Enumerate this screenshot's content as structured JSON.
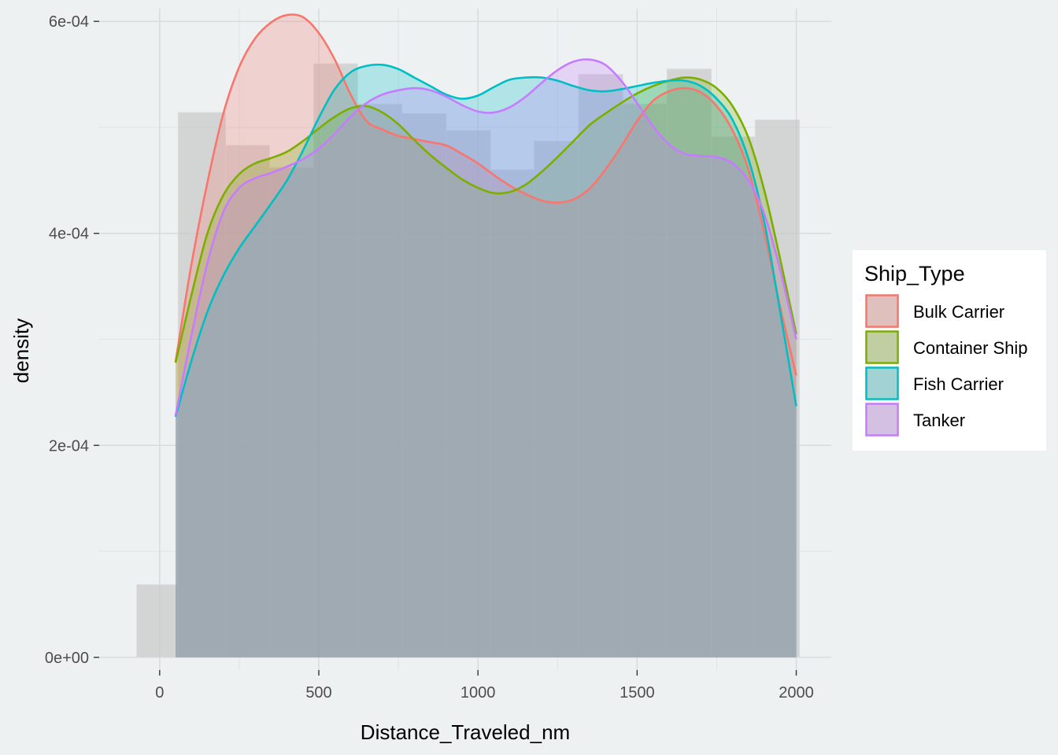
{
  "chart_data": {
    "type": "area",
    "xlabel": "Distance_Traveled_nm",
    "ylabel": "density",
    "xlim": [
      -190,
      2110
    ],
    "ylim": [
      -1.2e-05,
      0.000612
    ],
    "x_ticks": [
      0,
      500,
      1000,
      1500,
      2000
    ],
    "x_tick_labels": [
      "0",
      "500",
      "1000",
      "1500",
      "2000"
    ],
    "y_ticks": [
      0,
      0.0002,
      0.0004,
      0.0006
    ],
    "y_tick_labels": [
      "0e+00",
      "2e-04",
      "4e-04",
      "6e-04"
    ],
    "grid": true,
    "legend": {
      "title": "Ship_Type",
      "position": "right"
    },
    "histogram": {
      "fill": "#c7c7c7",
      "bin_width": 139.5,
      "bins": [
        {
          "x0": -72,
          "x1": 58,
          "density": 6.85e-05
        },
        {
          "x0": 58,
          "x1": 207,
          "density": 0.000514
        },
        {
          "x0": 207,
          "x1": 345,
          "density": 0.000483
        },
        {
          "x0": 345,
          "x1": 484,
          "density": 0.000462
        },
        {
          "x0": 484,
          "x1": 622,
          "density": 0.00056
        },
        {
          "x0": 622,
          "x1": 761,
          "density": 0.000522
        },
        {
          "x0": 761,
          "x1": 900,
          "density": 0.000513
        },
        {
          "x0": 900,
          "x1": 1039,
          "density": 0.000497
        },
        {
          "x0": 1039,
          "x1": 1177,
          "density": 0.00046
        },
        {
          "x0": 1177,
          "x1": 1316,
          "density": 0.000487
        },
        {
          "x0": 1316,
          "x1": 1455,
          "density": 0.00055
        },
        {
          "x0": 1455,
          "x1": 1594,
          "density": 0.000522
        },
        {
          "x0": 1594,
          "x1": 1733,
          "density": 0.000555
        },
        {
          "x0": 1733,
          "x1": 1871,
          "density": 0.000491
        },
        {
          "x0": 1871,
          "x1": 2010,
          "density": 0.000507
        }
      ]
    },
    "series": [
      {
        "name": "Bulk Carrier",
        "color": "#f8766d",
        "x": [
          50,
          100,
          150,
          200,
          250,
          300,
          350,
          400,
          450,
          500,
          550,
          600,
          650,
          700,
          750,
          800,
          850,
          900,
          950,
          1000,
          1050,
          1100,
          1150,
          1200,
          1250,
          1300,
          1350,
          1400,
          1450,
          1500,
          1550,
          1600,
          1650,
          1700,
          1750,
          1800,
          1850,
          1900,
          1950,
          2000
        ],
        "y": [
          0.000279,
          0.000371,
          0.000448,
          0.000513,
          0.000557,
          0.000584,
          0.000599,
          0.000606,
          0.000604,
          0.000589,
          0.000564,
          0.000531,
          0.000506,
          0.000498,
          0.000492,
          0.000489,
          0.000486,
          0.000483,
          0.000475,
          0.000466,
          0.000455,
          0.000445,
          0.000437,
          0.000431,
          0.000429,
          0.000432,
          0.000442,
          0.00046,
          0.000482,
          0.000506,
          0.000525,
          0.000534,
          0.000537,
          0.000533,
          0.00052,
          0.000497,
          0.00046,
          0.0004,
          0.00033,
          0.000266
        ]
      },
      {
        "name": "Container Ship",
        "color": "#7cae00",
        "x": [
          50,
          100,
          150,
          200,
          250,
          300,
          350,
          400,
          450,
          500,
          550,
          600,
          650,
          700,
          750,
          800,
          850,
          900,
          950,
          1000,
          1050,
          1100,
          1150,
          1200,
          1250,
          1300,
          1350,
          1400,
          1450,
          1500,
          1550,
          1600,
          1650,
          1700,
          1750,
          1800,
          1850,
          1900,
          1950,
          2000
        ],
        "y": [
          0.000278,
          0.000342,
          0.0004,
          0.000436,
          0.000456,
          0.000466,
          0.000471,
          0.000477,
          0.000487,
          0.000499,
          0.00051,
          0.000518,
          0.00052,
          0.000514,
          0.000503,
          0.000488,
          0.000474,
          0.000462,
          0.000451,
          0.000443,
          0.000438,
          0.000439,
          0.000446,
          0.000458,
          0.000472,
          0.000487,
          0.000502,
          0.000513,
          0.000523,
          0.000532,
          0.000539,
          0.000544,
          0.000547,
          0.000545,
          0.000537,
          0.00052,
          0.00049,
          0.00044,
          0.000375,
          0.000305
        ]
      },
      {
        "name": "Fish Carrier",
        "color": "#00bfc4",
        "x": [
          50,
          100,
          150,
          200,
          250,
          300,
          350,
          400,
          450,
          500,
          550,
          600,
          650,
          700,
          750,
          800,
          850,
          900,
          950,
          1000,
          1050,
          1100,
          1150,
          1200,
          1250,
          1300,
          1350,
          1400,
          1450,
          1500,
          1550,
          1600,
          1650,
          1700,
          1750,
          1800,
          1850,
          1900,
          1950,
          2000
        ],
        "y": [
          0.000227,
          0.00028,
          0.000326,
          0.00036,
          0.000386,
          0.000407,
          0.000428,
          0.00045,
          0.000478,
          0.000509,
          0.000536,
          0.000552,
          0.000558,
          0.000559,
          0.000555,
          0.000547,
          0.000539,
          0.000531,
          0.000527,
          0.00053,
          0.000538,
          0.000545,
          0.000547,
          0.000547,
          0.000544,
          0.000539,
          0.000535,
          0.000534,
          0.000536,
          0.000539,
          0.000542,
          0.000544,
          0.000544,
          0.000539,
          0.000527,
          0.000507,
          0.00047,
          0.00041,
          0.000325,
          0.000237
        ]
      },
      {
        "name": "Tanker",
        "color": "#c77cff",
        "x": [
          50,
          100,
          150,
          200,
          250,
          300,
          350,
          400,
          450,
          500,
          550,
          600,
          650,
          700,
          750,
          800,
          850,
          900,
          950,
          1000,
          1050,
          1100,
          1150,
          1200,
          1250,
          1300,
          1350,
          1400,
          1450,
          1500,
          1550,
          1600,
          1650,
          1700,
          1750,
          1800,
          1850,
          1900,
          1950,
          2000
        ],
        "y": [
          0.000228,
          0.000304,
          0.000372,
          0.00042,
          0.000443,
          0.000452,
          0.000457,
          0.000463,
          0.00047,
          0.00048,
          0.000494,
          0.00051,
          0.000523,
          0.000531,
          0.000535,
          0.000537,
          0.000535,
          0.000529,
          0.000521,
          0.000515,
          0.000514,
          0.000519,
          0.000529,
          0.000542,
          0.000554,
          0.000562,
          0.000564,
          0.000559,
          0.000544,
          0.000523,
          0.000501,
          0.000484,
          0.000475,
          0.000473,
          0.000472,
          0.000466,
          0.00045,
          0.000418,
          0.000365,
          0.0003
        ]
      }
    ]
  }
}
